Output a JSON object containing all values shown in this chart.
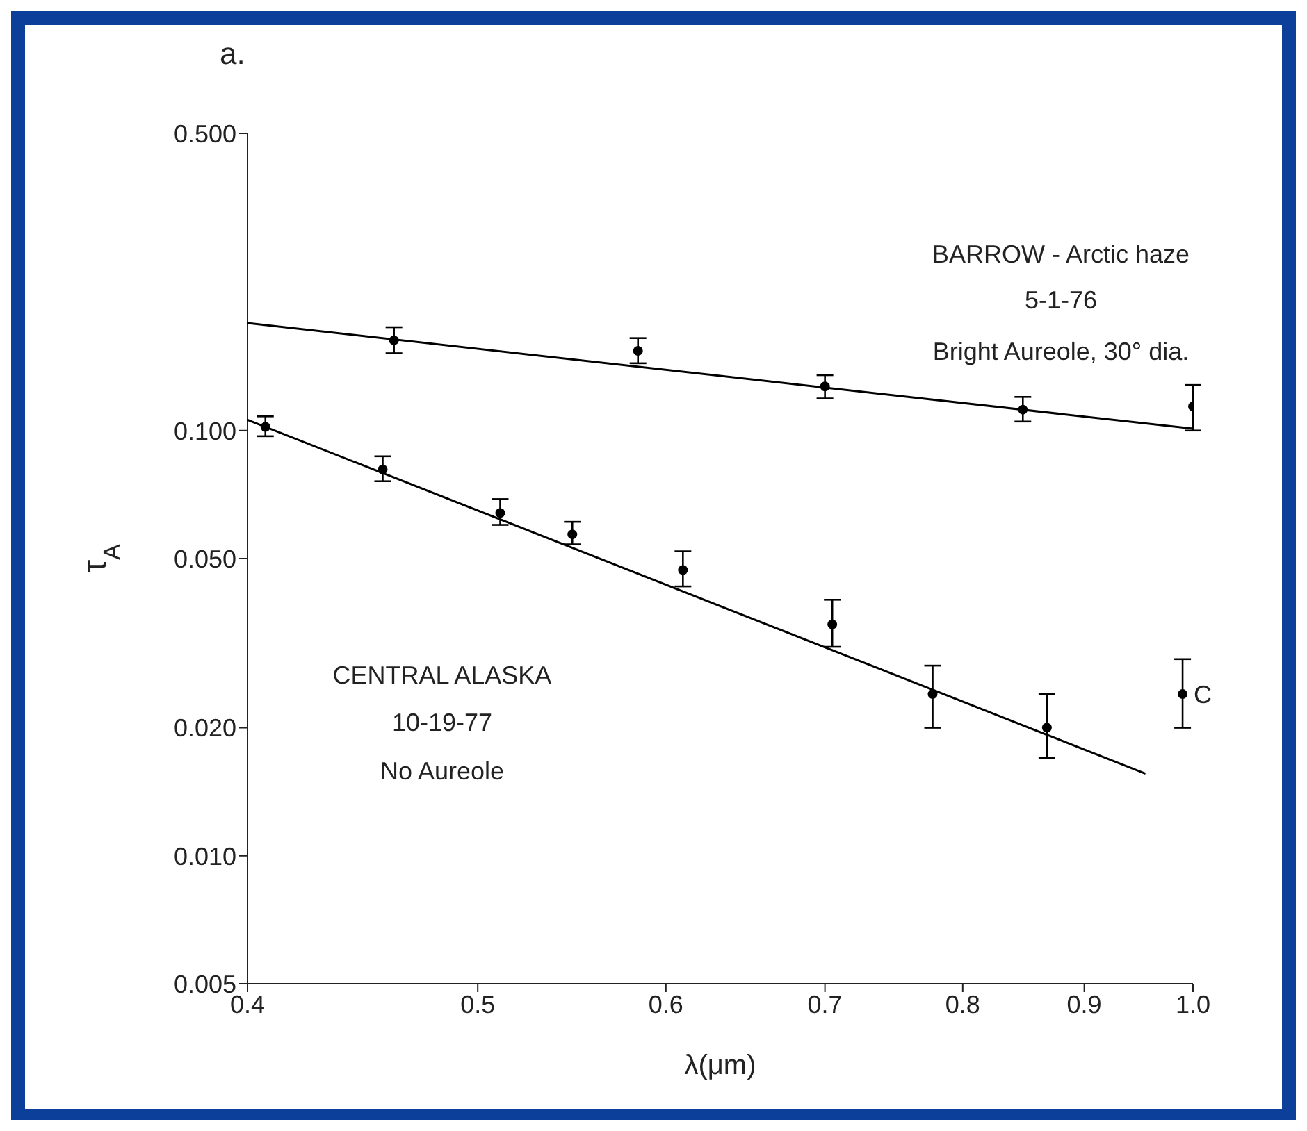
{
  "chart_data": {
    "type": "scatter",
    "log": "xy",
    "xlabel": "λ(μm)",
    "ylabel": "τ$_{A}$",
    "xlim": [
      0.4,
      1.0
    ],
    "xticks": [
      0.4,
      0.5,
      0.6,
      0.7,
      0.8,
      0.9,
      {
        "value": 1.0,
        "label": "1.0"
      }
    ],
    "ylim": [
      0.005,
      0.5
    ],
    "yticks": [
      {
        "value": 0.005,
        "label": "0.005"
      },
      {
        "value": 0.01,
        "label": "0.010"
      },
      {
        "value": 0.02,
        "label": "0.020"
      },
      {
        "value": 0.05,
        "label": "0.050"
      },
      {
        "value": 0.1,
        "label": "0.100"
      },
      {
        "value": 0.5,
        "label": "0.500"
      }
    ],
    "grid": false,
    "legend": false,
    "marker": "circle",
    "series": [
      {
        "color": "#000000",
        "x": [
          0.407,
          0.456,
          0.511,
          0.548,
          0.61,
          0.705,
          0.777,
          0.868
        ],
        "values": [
          0.102,
          0.081,
          0.064,
          0.057,
          0.047,
          0.035,
          0.024,
          0.02
        ],
        "errors": [
          [
            0.097,
            0.108
          ],
          [
            0.076,
            0.087
          ],
          [
            0.06,
            0.069
          ],
          [
            0.054,
            0.061
          ],
          [
            0.043,
            0.052
          ],
          [
            0.031,
            0.04
          ],
          [
            0.02,
            0.028
          ],
          [
            0.017,
            0.024
          ]
        ]
      },
      {
        "type": "line",
        "marker": "none",
        "color": "#000000",
        "x": [
          0.4,
          0.955
        ],
        "values": [
          0.106,
          0.0156
        ]
      },
      {
        "color": "#000000",
        "x": [
          0.461,
          0.584,
          0.7,
          0.848,
          1.0
        ],
        "values": [
          0.163,
          0.154,
          0.127,
          0.112,
          0.114
        ],
        "errors": [
          [
            0.152,
            0.175
          ],
          [
            0.144,
            0.165
          ],
          [
            0.119,
            0.135
          ],
          [
            0.105,
            0.12
          ],
          [
            0.1,
            0.128
          ]
        ]
      },
      {
        "type": "line",
        "marker": "none",
        "color": "#000000",
        "x": [
          0.4,
          1.0
        ],
        "values": [
          0.179,
          0.101
        ]
      },
      {
        "color": "#000000",
        "x": [
          0.99
        ],
        "values": [
          0.024
        ],
        "errors": [
          [
            0.02,
            0.029
          ]
        ]
      }
    ],
    "annotations": [
      "a.",
      "BARROW - Arctic haze",
      "5-1-76",
      "Bright Aureole, 30° dia.",
      "CENTRAL ALASKA",
      "10-19-77",
      "No Aureole",
      {
        "text": "C",
        "x": 0.99,
        "y": 0.024
      }
    ]
  }
}
